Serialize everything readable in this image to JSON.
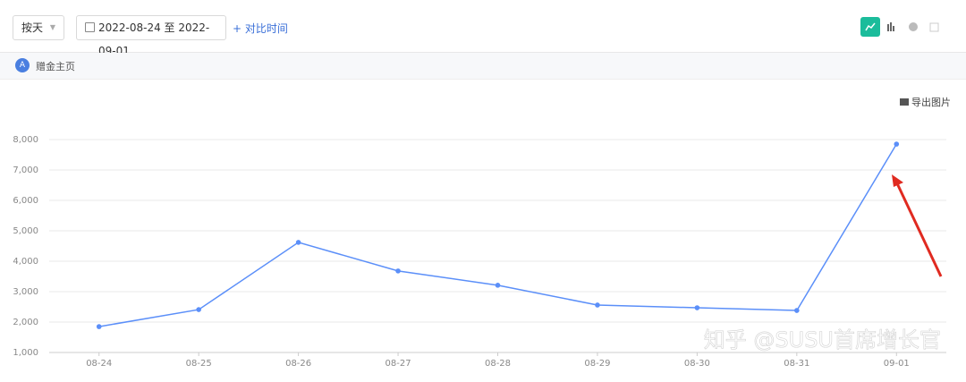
{
  "toolbar": {
    "granularity": "按天",
    "date_range": "2022-08-24 至 2022-09-01",
    "compare": "对比时间"
  },
  "segment": {
    "badge": "A",
    "name": "赠金主页"
  },
  "export_label": "导出图片",
  "watermark": "知乎 @SUSU首席增长官",
  "chart_data": {
    "type": "line",
    "categories": [
      "08-24",
      "08-25",
      "08-26",
      "08-27",
      "08-28",
      "08-29",
      "08-30",
      "08-31",
      "09-01"
    ],
    "values": [
      1850,
      2410,
      4620,
      3680,
      3210,
      2560,
      2470,
      2380,
      7850
    ],
    "color": "#5b8ff9",
    "ylim": [
      1000,
      8000
    ],
    "yticks": [
      {
        "value": 1000,
        "label": "1,000"
      },
      {
        "value": 2000,
        "label": "2,000"
      },
      {
        "value": 3000,
        "label": "3,000"
      },
      {
        "value": 4000,
        "label": "4,000"
      },
      {
        "value": 5000,
        "label": "5,000"
      },
      {
        "value": 6000,
        "label": "6,000"
      },
      {
        "value": 7000,
        "label": "7,000"
      },
      {
        "value": 8000,
        "label": "8,000"
      }
    ],
    "grid": true
  }
}
